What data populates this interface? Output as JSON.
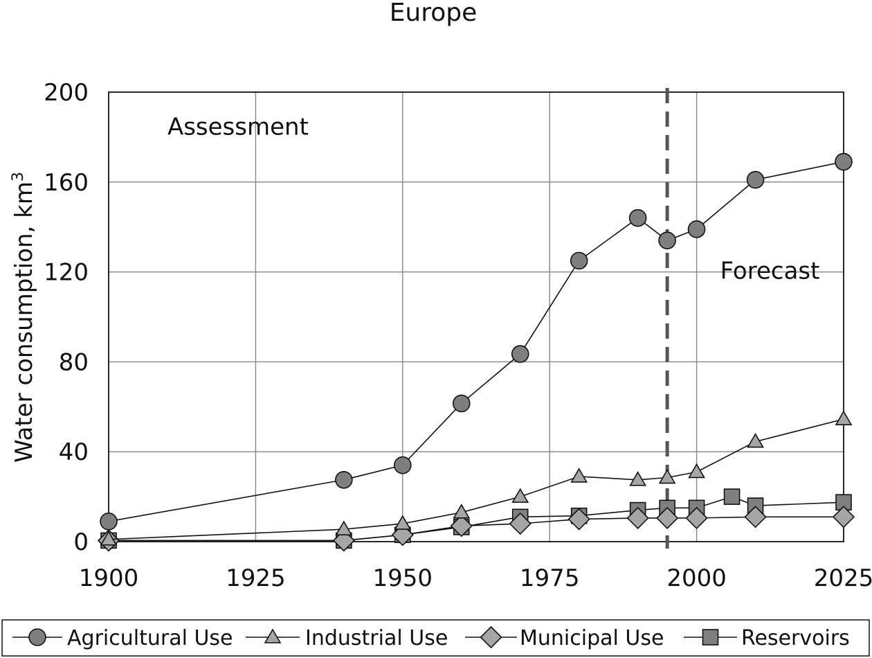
{
  "chart_data": {
    "type": "line",
    "title": "Europe",
    "xlabel": "",
    "ylabel": "Water consumption, km",
    "ylabel_sup": "3",
    "xlim": [
      1900,
      2025
    ],
    "ylim": [
      0,
      200
    ],
    "xticks": [
      1900,
      1925,
      1950,
      1975,
      2000,
      2025
    ],
    "yticks": [
      0,
      40,
      80,
      120,
      160,
      200
    ],
    "grid": true,
    "legend_position": "bottom",
    "annotations": [
      {
        "text": "Assessment",
        "x": 1910,
        "y": 181
      },
      {
        "text": "Forecast",
        "x": 2004,
        "y": 117
      }
    ],
    "divider_x": 1995,
    "series": [
      {
        "name": "Agricultural Use",
        "marker": "circle",
        "points": [
          [
            1900,
            9
          ],
          [
            1940,
            27.5
          ],
          [
            1950,
            34
          ],
          [
            1960,
            61.5
          ],
          [
            1970,
            83.5
          ],
          [
            1980,
            125
          ],
          [
            1990,
            144
          ],
          [
            1995,
            134
          ],
          [
            2000,
            139
          ],
          [
            2010,
            161
          ],
          [
            2025,
            169
          ]
        ]
      },
      {
        "name": "Industrial Use",
        "marker": "triangle",
        "points": [
          [
            1900,
            1
          ],
          [
            1940,
            5.5
          ],
          [
            1950,
            8
          ],
          [
            1960,
            13
          ],
          [
            1970,
            20
          ],
          [
            1980,
            29
          ],
          [
            1990,
            27.5
          ],
          [
            1995,
            28.5
          ],
          [
            2000,
            31
          ],
          [
            2010,
            44.5
          ],
          [
            2025,
            54.5
          ]
        ]
      },
      {
        "name": "Municipal Use",
        "marker": "diamond",
        "points": [
          [
            1900,
            0.5
          ],
          [
            1940,
            0.5
          ],
          [
            1950,
            3
          ],
          [
            1960,
            7
          ],
          [
            1970,
            8
          ],
          [
            1980,
            10
          ],
          [
            1990,
            10.5
          ],
          [
            1995,
            10.5
          ],
          [
            2000,
            10.5
          ],
          [
            2010,
            11
          ],
          [
            2025,
            11
          ]
        ]
      },
      {
        "name": "Reservoirs",
        "marker": "square",
        "points": [
          [
            1900,
            0.5
          ],
          [
            1940,
            0.5
          ],
          [
            1950,
            3
          ],
          [
            1960,
            6.5
          ],
          [
            1970,
            11
          ],
          [
            1980,
            11.5
          ],
          [
            1990,
            14
          ],
          [
            1995,
            15
          ],
          [
            2000,
            15
          ],
          [
            2006,
            20
          ],
          [
            2010,
            16
          ],
          [
            2025,
            17.5
          ]
        ]
      }
    ]
  },
  "colors": {
    "marker_fill_dark": "#7f7f7f",
    "marker_fill_light": "#a6a6a6",
    "line": "#111111",
    "grid": "#8c8c8c",
    "divider": "#555555"
  }
}
